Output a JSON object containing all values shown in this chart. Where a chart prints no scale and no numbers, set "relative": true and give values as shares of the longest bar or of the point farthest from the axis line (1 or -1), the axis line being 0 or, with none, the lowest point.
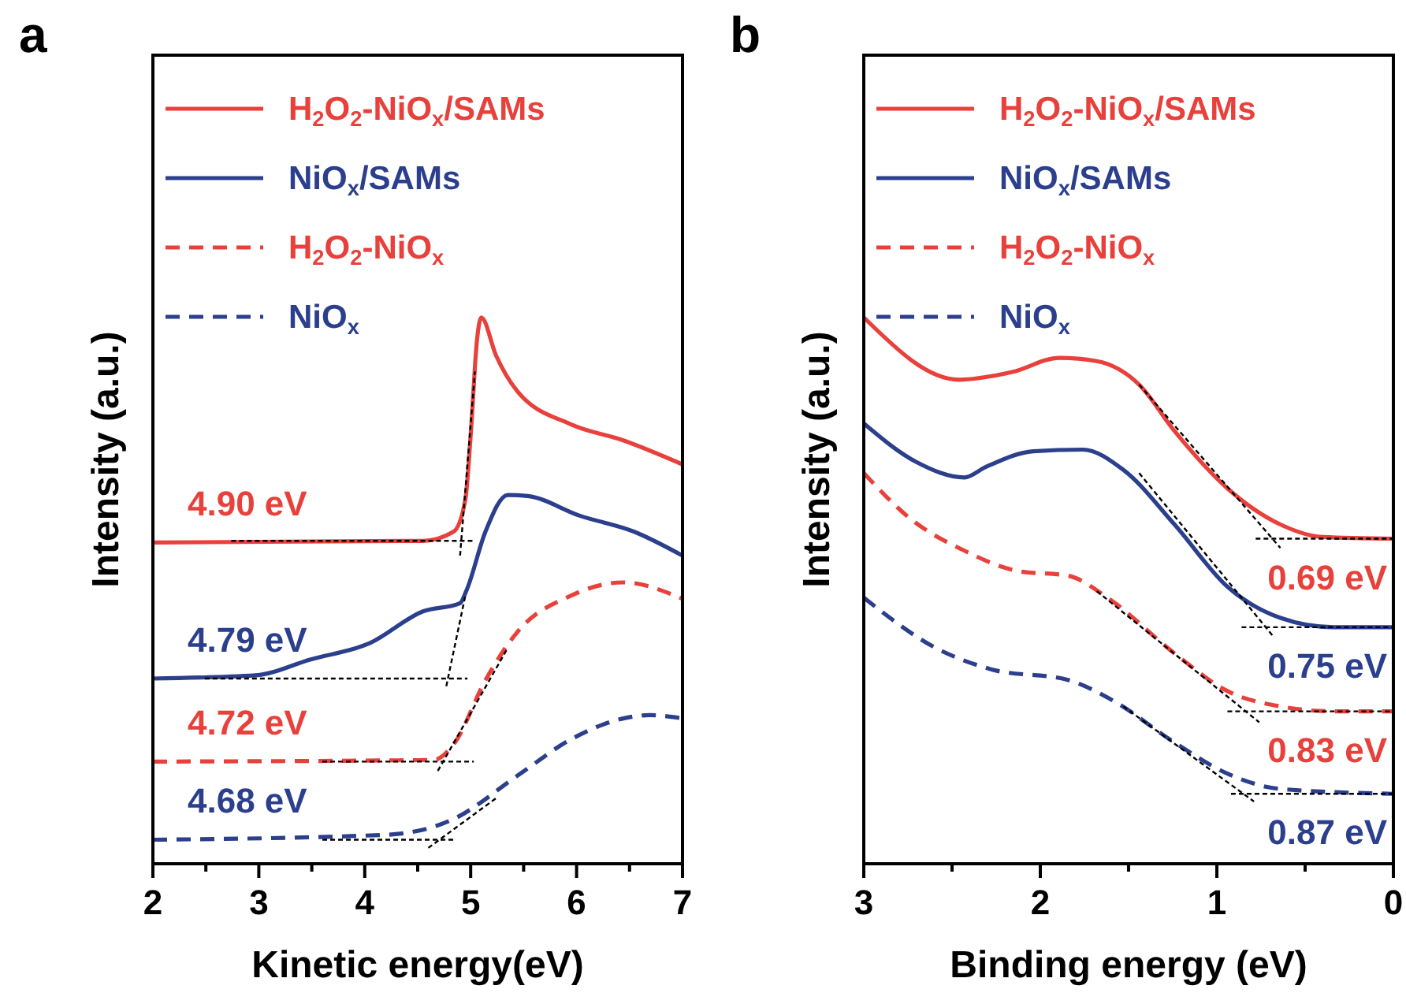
{
  "chart_data": [
    {
      "type": "line",
      "title": "a",
      "xlabel": "Kinetic energy(eV)",
      "ylabel": "Intensity (a.u.)",
      "relative": true,
      "xlim": [
        2,
        7
      ],
      "xticks": [
        2,
        {
          "value": 2.5,
          "label": null
        },
        3,
        {
          "value": 3.5,
          "label": null
        },
        4,
        {
          "value": 4.5,
          "label": null
        },
        5,
        {
          "value": 5.5,
          "label": null
        },
        6,
        {
          "value": 6.5,
          "label": null
        },
        7
      ],
      "legend": "top left",
      "grid": false,
      "annotations": [
        "4.90 eV",
        "4.79 eV",
        "4.72 eV",
        "4.68 eV"
      ],
      "series": [
        {
          "name": "H$_{2}$O$_{2}$-NiO$_{x}$/SAMs",
          "color": "#e8413c",
          "line_style": "solid",
          "x": [
            2,
            4.55,
            4.84,
            4.95,
            5.0,
            5.06,
            5.1,
            5.24,
            5.44,
            5.95,
            6.44,
            7
          ],
          "values": [
            0.588,
            0.591,
            0.608,
            0.667,
            0.784,
            0.959,
            1,
            0.93,
            0.865,
            0.804,
            0.775,
            0.731
          ]
        },
        {
          "name": "NiO$_{x}$/SAMs",
          "color": "#2b3f8c",
          "line_style": "solid",
          "x": [
            2,
            2.97,
            3.49,
            4.05,
            4.55,
            4.9,
            4.96,
            5.14,
            5.35,
            5.54,
            6.03,
            6.54,
            7
          ],
          "values": [
            0.339,
            0.345,
            0.374,
            0.404,
            0.462,
            0.477,
            0.5,
            0.608,
            0.675,
            0.673,
            0.637,
            0.608,
            0.564
          ]
        },
        {
          "name": "H$_{2}$O$_{2}$-NiO$_{x}$",
          "color": "#e8413c",
          "line_style": "dashed",
          "x": [
            2,
            4.65,
            4.84,
            5.14,
            5.44,
            5.95,
            6.44,
            7
          ],
          "values": [
            0.187,
            0.19,
            0.219,
            0.336,
            0.424,
            0.491,
            0.515,
            0.485
          ]
        },
        {
          "name": "NiO$_{x}$",
          "color": "#2b3f8c",
          "line_style": "dashed",
          "x": [
            2,
            4.2,
            4.84,
            5.44,
            5.95,
            6.44,
            6.69,
            7
          ],
          "values": [
            0.044,
            0.053,
            0.082,
            0.161,
            0.228,
            0.266,
            0.272,
            0.266
          ]
        },
        {
          "color": "#000000",
          "line_style": "dashed",
          "x": [
            2.74,
            5.03
          ],
          "values": [
            0.591,
            0.591
          ]
        },
        {
          "color": "#000000",
          "line_style": "dashed",
          "x": [
            4.9,
            5.04
          ],
          "values": [
            0.564,
            0.901
          ]
        },
        {
          "color": "#000000",
          "line_style": "dashed",
          "x": [
            2.49,
            4.97
          ],
          "values": [
            0.339,
            0.339
          ]
        },
        {
          "color": "#000000",
          "line_style": "dashed",
          "x": [
            4.77,
            4.95
          ],
          "values": [
            0.325,
            0.491
          ]
        },
        {
          "color": "#000000",
          "line_style": "dashed",
          "x": [
            3.6,
            5.03
          ],
          "values": [
            0.187,
            0.187
          ]
        },
        {
          "color": "#000000",
          "line_style": "dashed",
          "x": [
            4.69,
            5.35
          ],
          "values": [
            0.17,
            0.395
          ]
        },
        {
          "color": "#000000",
          "line_style": "dashed",
          "x": [
            3.6,
            4.85
          ],
          "values": [
            0.044,
            0.044
          ]
        },
        {
          "color": "#000000",
          "line_style": "dashed",
          "x": [
            4.6,
            5.24
          ],
          "values": [
            0.029,
            0.12
          ]
        }
      ]
    },
    {
      "type": "line",
      "title": "b",
      "xlabel": "Binding energy (eV)",
      "ylabel": "Intensity (a.u.)",
      "relative": true,
      "xlim": [
        3,
        0
      ],
      "xticks": [
        3,
        {
          "value": 2.5,
          "label": null
        },
        2,
        {
          "value": 1.5,
          "label": null
        },
        1,
        {
          "value": 0.5,
          "label": null
        },
        0
      ],
      "legend": "top left",
      "grid": false,
      "annotations": [
        "0.69 eV",
        "0.75 eV",
        "0.83 eV",
        "0.87 eV"
      ],
      "series": [
        {
          "name": "H$_{2}$O$_{2}$-NiO$_{x}$/SAMs",
          "color": "#e8413c",
          "line_style": "solid",
          "x": [
            3,
            2.46,
            2.16,
            1.89,
            1.68,
            1.44,
            1.24,
            0.94,
            0.64,
            0.4,
            0
          ],
          "values": [
            1.0,
            0.886,
            0.9,
            0.926,
            0.92,
            0.877,
            0.792,
            0.687,
            0.621,
            0.598,
            0.595
          ]
        },
        {
          "name": "NiO$_{x}$/SAMs",
          "color": "#2b3f8c",
          "line_style": "solid",
          "x": [
            3,
            2.7,
            2.43,
            2.31,
            2.04,
            1.76,
            1.53,
            1.24,
            0.94,
            0.64,
            0.34,
            0
          ],
          "values": [
            0.806,
            0.735,
            0.707,
            0.726,
            0.755,
            0.758,
            0.721,
            0.621,
            0.507,
            0.45,
            0.433,
            0.433
          ]
        },
        {
          "name": "H$_{2}$O$_{2}$-NiO$_{x}$",
          "color": "#e8413c",
          "line_style": "dashed",
          "x": [
            3,
            2.73,
            2.43,
            2.13,
            1.84,
            1.62,
            1.24,
            0.94,
            0.64,
            0.34,
            0
          ],
          "values": [
            0.715,
            0.63,
            0.573,
            0.536,
            0.527,
            0.487,
            0.385,
            0.316,
            0.288,
            0.279,
            0.279
          ]
        },
        {
          "name": "NiO$_{x}$",
          "color": "#2b3f8c",
          "line_style": "dashed",
          "x": [
            3,
            2.58,
            2.28,
            1.84,
            1.59,
            1.24,
            0.94,
            0.64,
            0
          ],
          "values": [
            0.487,
            0.393,
            0.356,
            0.336,
            0.299,
            0.222,
            0.165,
            0.137,
            0.128
          ]
        },
        {
          "color": "#000000",
          "line_style": "dashed",
          "x": [
            0.78,
            0
          ],
          "values": [
            0.595,
            0.595
          ]
        },
        {
          "color": "#000000",
          "line_style": "dashed",
          "x": [
            1.44,
            0.64
          ],
          "values": [
            0.877,
            0.578
          ]
        },
        {
          "color": "#000000",
          "line_style": "dashed",
          "x": [
            0.86,
            0
          ],
          "values": [
            0.433,
            0.433
          ]
        },
        {
          "color": "#000000",
          "line_style": "dashed",
          "x": [
            1.44,
            0.68
          ],
          "values": [
            0.715,
            0.416
          ]
        },
        {
          "color": "#000000",
          "line_style": "dashed",
          "x": [
            0.94,
            0
          ],
          "values": [
            0.279,
            0.279
          ]
        },
        {
          "color": "#000000",
          "line_style": "dashed",
          "x": [
            1.68,
            0.76
          ],
          "values": [
            0.499,
            0.259
          ]
        },
        {
          "color": "#000000",
          "line_style": "dashed",
          "x": [
            0.92,
            0
          ],
          "values": [
            0.128,
            0.128
          ]
        },
        {
          "color": "#000000",
          "line_style": "dashed",
          "x": [
            1.53,
            0.79
          ],
          "values": [
            0.288,
            0.114
          ]
        }
      ]
    }
  ]
}
